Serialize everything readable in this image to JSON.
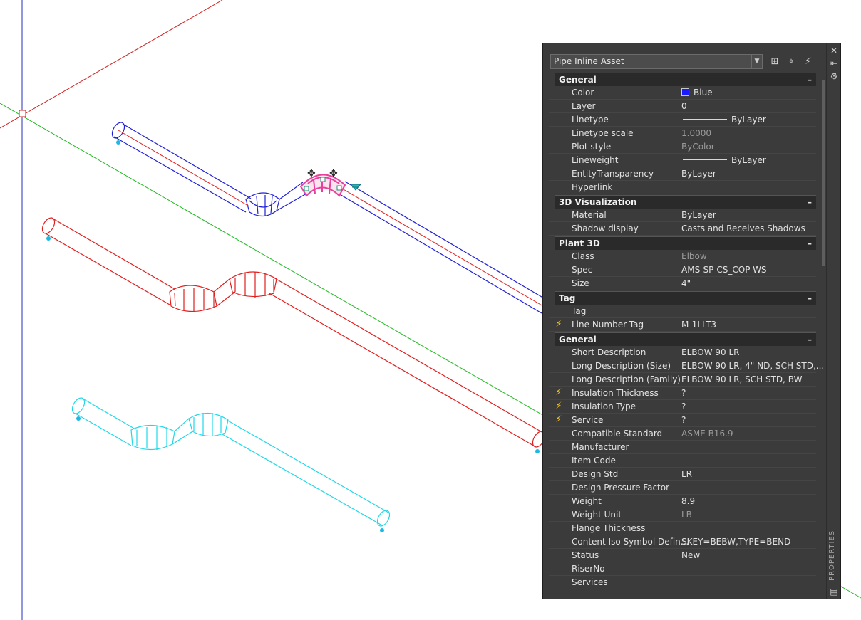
{
  "colors": {
    "blue_pipe": "#1f1fd9",
    "red_pipe": "#e01e1e",
    "cyan_pipe": "#1fd8e8",
    "selection": "#e6409a",
    "x_axis": "#d02020",
    "y_axis": "#1fb81f",
    "z_axis": "#2030c0",
    "grip": "#1e8f70"
  },
  "palette": {
    "object_type": "Pipe Inline Asset",
    "side_title": "PROPERTIES",
    "sections": [
      {
        "title": "General",
        "collapse": "–",
        "rows": [
          {
            "name": "Color",
            "value": "Blue",
            "swatch": "#1a1aff"
          },
          {
            "name": "Layer",
            "value": "0"
          },
          {
            "name": "Linetype",
            "value": "ByLayer",
            "line": true
          },
          {
            "name": "Linetype scale",
            "value": "1.0000",
            "dim": true
          },
          {
            "name": "Plot style",
            "value": "ByColor",
            "dim": true
          },
          {
            "name": "Lineweight",
            "value": "ByLayer",
            "line": true
          },
          {
            "name": "EntityTransparency",
            "value": "ByLayer"
          },
          {
            "name": "Hyperlink",
            "value": ""
          }
        ]
      },
      {
        "title": "3D Visualization",
        "collapse": "–",
        "rows": [
          {
            "name": "Material",
            "value": "ByLayer"
          },
          {
            "name": "Shadow display",
            "value": "Casts and Receives Shadows"
          }
        ]
      },
      {
        "title": "Plant 3D",
        "collapse": "–",
        "rows": [
          {
            "name": "Class",
            "value": "Elbow",
            "dim": true
          },
          {
            "name": "Spec",
            "value": "AMS-SP-CS_COP-WS"
          },
          {
            "name": "Size",
            "value": "4\""
          }
        ]
      },
      {
        "title": "Tag",
        "collapse": "–",
        "rows": [
          {
            "name": "Tag",
            "value": ""
          },
          {
            "name": "Line Number Tag",
            "value": "M-1LLT3",
            "bolt": true
          }
        ]
      },
      {
        "title": "General",
        "collapse": "–",
        "rows": [
          {
            "name": "Short Description",
            "value": "ELBOW 90 LR"
          },
          {
            "name": "Long Description (Size)",
            "value": "ELBOW 90 LR, 4\" ND, SCH STD,..."
          },
          {
            "name": "Long Description (Family)",
            "value": "ELBOW 90 LR, SCH STD, BW"
          },
          {
            "name": "Insulation Thickness",
            "value": "?",
            "bolt": true
          },
          {
            "name": "Insulation Type",
            "value": "?",
            "bolt": true
          },
          {
            "name": "Service",
            "value": "?",
            "bolt": true
          },
          {
            "name": "Compatible Standard",
            "value": "ASME B16.9",
            "dim": true
          },
          {
            "name": "Manufacturer",
            "value": ""
          },
          {
            "name": "Item Code",
            "value": ""
          },
          {
            "name": "Design Std",
            "value": "LR"
          },
          {
            "name": "Design Pressure Factor",
            "value": ""
          },
          {
            "name": "Weight",
            "value": "8.9"
          },
          {
            "name": "Weight Unit",
            "value": "LB",
            "dim": true
          },
          {
            "name": "Flange Thickness",
            "value": ""
          },
          {
            "name": "Content Iso Symbol Defin...",
            "value": "SKEY=BEBW,TYPE=BEND"
          },
          {
            "name": "Status",
            "value": "New"
          },
          {
            "name": "RiserNo",
            "value": ""
          },
          {
            "name": "Services",
            "value": ""
          }
        ]
      }
    ]
  }
}
